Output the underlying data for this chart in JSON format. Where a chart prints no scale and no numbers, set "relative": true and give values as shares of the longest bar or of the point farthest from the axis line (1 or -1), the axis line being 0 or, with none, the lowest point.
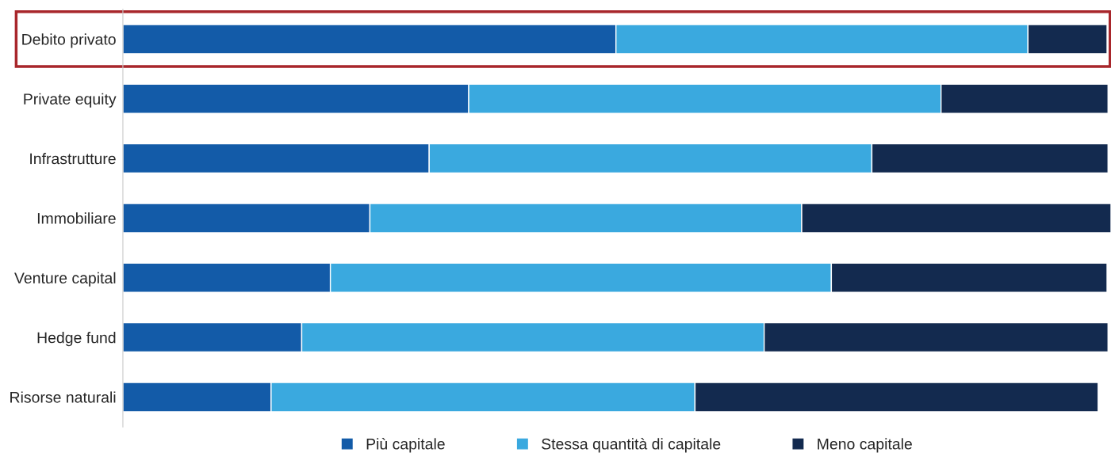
{
  "chart_data": {
    "type": "bar",
    "orientation": "horizontal",
    "stacked": true,
    "relative": true,
    "categories": [
      "Debito privato",
      "Private equity",
      "Infrastrutture",
      "Immobiliare",
      "Venture capital",
      "Hedge fund",
      "Risorse naturali"
    ],
    "series": [
      {
        "name": "Più capitale",
        "color": "#135ba8",
        "values": [
          0.499,
          0.35,
          0.31,
          0.25,
          0.21,
          0.181,
          0.15
        ]
      },
      {
        "name": "Stessa quantità di capitale",
        "color": "#3aa9df",
        "values": [
          0.417,
          0.478,
          0.448,
          0.437,
          0.507,
          0.468,
          0.429
        ]
      },
      {
        "name": "Meno capitale",
        "color": "#132a4f",
        "values": [
          0.08,
          0.169,
          0.239,
          0.313,
          0.279,
          0.348,
          0.408
        ]
      }
    ],
    "legend": "bottom",
    "grid": false
  }
}
